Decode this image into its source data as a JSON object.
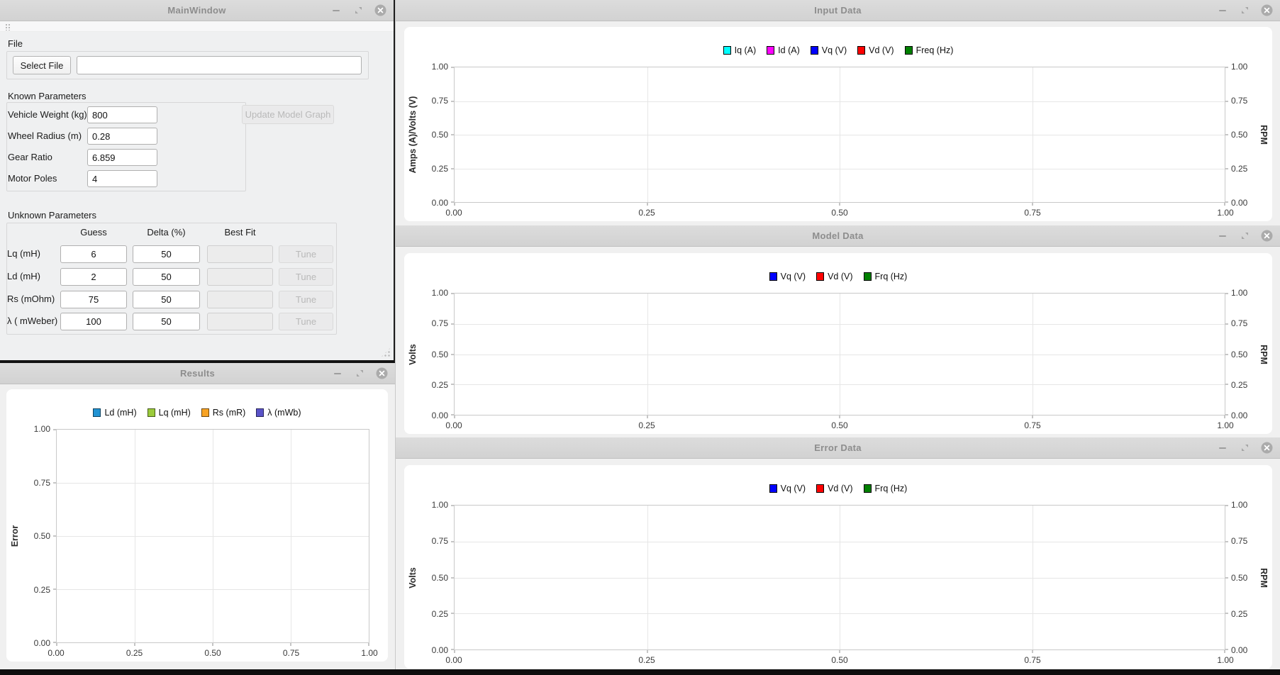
{
  "main_window": {
    "title": "MainWindow",
    "file_section": {
      "label": "File",
      "select_file_button": "Select File",
      "file_path_value": ""
    },
    "known_parameters": {
      "heading": "Known Parameters",
      "update_button": "Update Model Graph",
      "fields": [
        {
          "label": "Vehicle Weight (kg)",
          "value": "800"
        },
        {
          "label": "Wheel Radius (m)",
          "value": "0.28"
        },
        {
          "label": "Gear Ratio",
          "value": "6.859"
        },
        {
          "label": "Motor Poles",
          "value": "4"
        }
      ]
    },
    "unknown_parameters": {
      "heading": "Unknown Parameters",
      "columns": [
        "Guess",
        "Delta (%)",
        "Best Fit"
      ],
      "rows": [
        {
          "label": "Lq (mH)",
          "guess": "6",
          "delta": "50",
          "best_fit": "",
          "tune": "Tune"
        },
        {
          "label": "Ld (mH)",
          "guess": "2",
          "delta": "50",
          "best_fit": "",
          "tune": "Tune"
        },
        {
          "label": "Rs (mOhm)",
          "guess": "75",
          "delta": "50",
          "best_fit": "",
          "tune": "Tune"
        },
        {
          "label": "λ ( mWeber)",
          "guess": "100",
          "delta": "50",
          "best_fit": "",
          "tune": "Tune"
        }
      ]
    }
  },
  "windows": {
    "results": {
      "title": "Results"
    },
    "input_data": {
      "title": "Input Data"
    },
    "model_data": {
      "title": "Model Data"
    },
    "error_data": {
      "title": "Error Data"
    }
  },
  "icons": {
    "minimize": "–",
    "restore": "⧉",
    "close": "✕",
    "toolbar_handle": "grip-dots",
    "resize_grip": "grip-dots"
  },
  "colors": {
    "titlebar_bg": "#d6d6d6",
    "titlebar_text": "#8d8d8d",
    "window_bg": "#f0f0f1",
    "panel_bg": "#ffffff",
    "plot_border": "#c9c9c9",
    "gridline": "#e6e6e6"
  },
  "chart_data": [
    {
      "id": "input_data",
      "type": "line",
      "title": "",
      "legend": [
        {
          "label": "Iq (A)",
          "color": "#00FFFF"
        },
        {
          "label": "Id (A)",
          "color": "#FF00FF"
        },
        {
          "label": "Vq (V)",
          "color": "#0000FF"
        },
        {
          "label": "Vd (V)",
          "color": "#FF0000"
        },
        {
          "label": "Freq (Hz)",
          "color": "#008000"
        }
      ],
      "ylabel": "Amps (A)/Volts (V)",
      "ylabel_right": "RPM",
      "right_axis": true,
      "xlim": [
        0,
        1
      ],
      "ylim": [
        0,
        1
      ],
      "xticks": [
        "0.00",
        "0.25",
        "0.50",
        "0.75",
        "1.00"
      ],
      "yticks": [
        "0.00",
        "0.25",
        "0.50",
        "0.75",
        "1.00"
      ],
      "grid": true,
      "legend_position": "top-center",
      "series": []
    },
    {
      "id": "model_data",
      "type": "line",
      "title": "",
      "legend": [
        {
          "label": "Vq (V)",
          "color": "#0000FF"
        },
        {
          "label": "Vd (V)",
          "color": "#FF0000"
        },
        {
          "label": "Frq (Hz)",
          "color": "#008000"
        }
      ],
      "ylabel": "Volts",
      "ylabel_right": "RPM",
      "right_axis": true,
      "xlim": [
        0,
        1
      ],
      "ylim": [
        0,
        1
      ],
      "xticks": [
        "0.00",
        "0.25",
        "0.50",
        "0.75",
        "1.00"
      ],
      "yticks": [
        "0.00",
        "0.25",
        "0.50",
        "0.75",
        "1.00"
      ],
      "grid": true,
      "legend_position": "top-center",
      "series": []
    },
    {
      "id": "error_data",
      "type": "line",
      "title": "",
      "legend": [
        {
          "label": "Vq (V)",
          "color": "#0000FF"
        },
        {
          "label": "Vd (V)",
          "color": "#FF0000"
        },
        {
          "label": "Frq (Hz)",
          "color": "#008000"
        }
      ],
      "ylabel": "Volts",
      "ylabel_right": "RPM",
      "right_axis": true,
      "xlim": [
        0,
        1
      ],
      "ylim": [
        0,
        1
      ],
      "xticks": [
        "0.00",
        "0.25",
        "0.50",
        "0.75",
        "1.00"
      ],
      "yticks": [
        "0.00",
        "0.25",
        "0.50",
        "0.75",
        "1.00"
      ],
      "grid": true,
      "legend_position": "top-center",
      "series": []
    },
    {
      "id": "results",
      "type": "line",
      "title": "",
      "legend": [
        {
          "label": "Ld (mH)",
          "color": "#2293D3"
        },
        {
          "label": "Lq (mH)",
          "color": "#9BCB3B"
        },
        {
          "label": "Rs (mR)",
          "color": "#F8A324"
        },
        {
          "label": "λ (mWb)",
          "color": "#5A53C8"
        }
      ],
      "ylabel": "Error",
      "ylabel_right": null,
      "right_axis": false,
      "xlim": [
        0,
        1
      ],
      "ylim": [
        0,
        1
      ],
      "xticks": [
        "0.00",
        "0.25",
        "0.50",
        "0.75",
        "1.00"
      ],
      "yticks": [
        "0.00",
        "0.25",
        "0.50",
        "0.75",
        "1.00"
      ],
      "grid": true,
      "legend_position": "top-center",
      "series": []
    }
  ]
}
